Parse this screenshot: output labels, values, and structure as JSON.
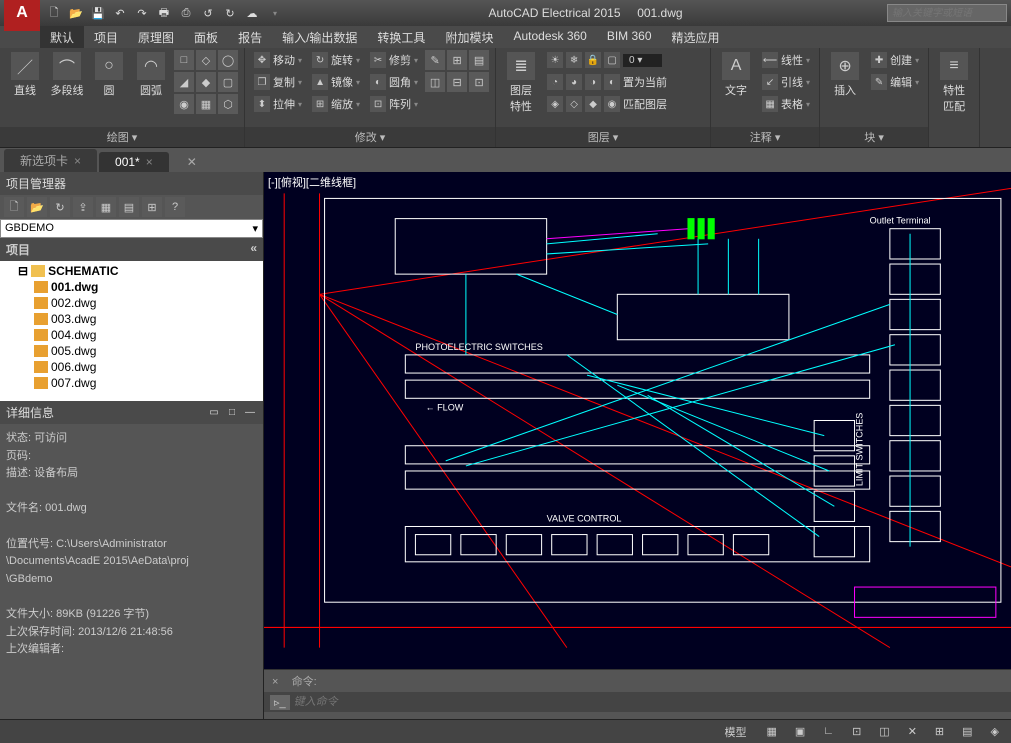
{
  "app": {
    "title": "AutoCAD Electrical 2015",
    "doc": "001.dwg",
    "search_placeholder": "输入关键字或短语",
    "logo_letter": "A"
  },
  "qat_icons": [
    "new-icon",
    "open-icon",
    "save-icon",
    "undo-icon",
    "redo-icon",
    "print-icon",
    "plot-icon",
    "redo2-icon",
    "more-icon"
  ],
  "menu": {
    "tabs": [
      "默认",
      "项目",
      "原理图",
      "面板",
      "报告",
      "输入/输出数据",
      "转换工具",
      "附加模块",
      "Autodesk 360",
      "BIM 360",
      "精选应用"
    ],
    "active": 0
  },
  "ribbon": {
    "panels": [
      {
        "title": "绘图 ▾",
        "large": [
          {
            "icon": "／",
            "label": "直线"
          },
          {
            "icon": "⌒",
            "label": "多段线"
          },
          {
            "icon": "○",
            "label": "圆"
          },
          {
            "icon": "◠",
            "label": "圆弧"
          }
        ],
        "grid": [
          [
            "□",
            "◇",
            "◯"
          ],
          [
            "◢",
            "◆",
            "▢"
          ],
          [
            "◉",
            "▦",
            "⬡"
          ]
        ]
      },
      {
        "title": "修改 ▾",
        "cols": [
          [
            {
              "icon": "✥",
              "label": "移动"
            },
            {
              "icon": "❐",
              "label": "复制"
            },
            {
              "icon": "⬍",
              "label": "拉伸"
            }
          ],
          [
            {
              "icon": "↻",
              "label": "旋转"
            },
            {
              "icon": "▲",
              "label": "镜像"
            },
            {
              "icon": "⊞",
              "label": "缩放"
            }
          ],
          [
            {
              "icon": "✂",
              "label": "修剪"
            },
            {
              "icon": "◐",
              "label": "圆角"
            },
            {
              "icon": "⊡",
              "label": "阵列"
            }
          ]
        ],
        "extra_icons": [
          "✎",
          "⊞",
          "▤",
          "◫",
          "⊟",
          "⊡"
        ]
      },
      {
        "title": "图层 ▾",
        "large": [
          {
            "icon": "≣",
            "label": "图层\n特性"
          }
        ],
        "rows": [
          {
            "controls": [
              "☀",
              "❄",
              "🔒",
              "▢"
            ],
            "combo": "0"
          },
          {
            "icons": [
              "◔",
              "◕",
              "◑",
              "◐"
            ],
            "label": "置为当前"
          },
          {
            "icons": [
              "◈",
              "◇",
              "◆",
              "◉"
            ],
            "label": "匹配图层"
          }
        ]
      },
      {
        "title": "注释 ▾",
        "large": [
          {
            "icon": "A",
            "label": "文字"
          }
        ],
        "cols": [
          [
            {
              "icon": "⟵",
              "label": "线性"
            },
            {
              "icon": "↙",
              "label": "引线"
            },
            {
              "icon": "▦",
              "label": "表格"
            }
          ]
        ]
      },
      {
        "title": "块 ▾",
        "large": [
          {
            "icon": "⊕",
            "label": "插入"
          }
        ],
        "cols": [
          [
            {
              "icon": "✚",
              "label": "创建"
            },
            {
              "icon": "✎",
              "label": "编辑"
            }
          ]
        ]
      },
      {
        "title": "",
        "large": [
          {
            "icon": "≡",
            "label": "特性\n匹配"
          }
        ]
      }
    ]
  },
  "doc_tabs": [
    {
      "label": "新选项卡",
      "active": false
    },
    {
      "label": "001*",
      "active": true
    }
  ],
  "project_manager": {
    "title": "项目管理器",
    "combo": "GBDEMO",
    "section": "项目",
    "tree": [
      {
        "level": 1,
        "icon": "folder",
        "label": "SCHEMATIC",
        "bold": true,
        "exp": "⊟"
      },
      {
        "level": 2,
        "icon": "file",
        "label": "001.dwg",
        "bold": true
      },
      {
        "level": 2,
        "icon": "file",
        "label": "002.dwg"
      },
      {
        "level": 2,
        "icon": "file",
        "label": "003.dwg"
      },
      {
        "level": 2,
        "icon": "file",
        "label": "004.dwg"
      },
      {
        "level": 2,
        "icon": "file",
        "label": "005.dwg"
      },
      {
        "level": 2,
        "icon": "file",
        "label": "006.dwg"
      },
      {
        "level": 2,
        "icon": "file",
        "label": "007.dwg"
      }
    ]
  },
  "details": {
    "title": "详细信息",
    "lines": [
      "状态: 可访问",
      "页码:",
      "描述: 设备布局",
      "",
      "文件名: 001.dwg",
      "",
      "位置代号: C:\\Users\\Administrator",
      "\\Documents\\AcadE 2015\\AeData\\proj",
      "\\GBdemo",
      "",
      "文件大小: 89KB (91226 字节)",
      "上次保存时间: 2013/12/6 21:48:56",
      "上次编辑者:"
    ]
  },
  "canvas": {
    "viewlabel": "[-][俯视][二维线框]",
    "labels": {
      "outlet": "Outlet Terminal",
      "photo": "PHOTOELECTRIC SWITCHES",
      "flow": "FLOW",
      "valve": "VALVE CONTROL",
      "limit": "LIMIT SWITCHES"
    },
    "colors": {
      "bg": "#000020",
      "frame": "#ffffff",
      "red": "#ff0000",
      "cyan": "#00ffff",
      "magenta": "#ff00ff",
      "white": "#ffffff",
      "green": "#00ff00"
    }
  },
  "cmd": {
    "label": "命令:",
    "placeholder": "键入命令",
    "close": "×"
  },
  "status": {
    "model": "模型",
    "icons": [
      "▦",
      "▣",
      "∟",
      "⊡",
      "◫",
      "✕",
      "⊞",
      "▤",
      "◈"
    ]
  }
}
